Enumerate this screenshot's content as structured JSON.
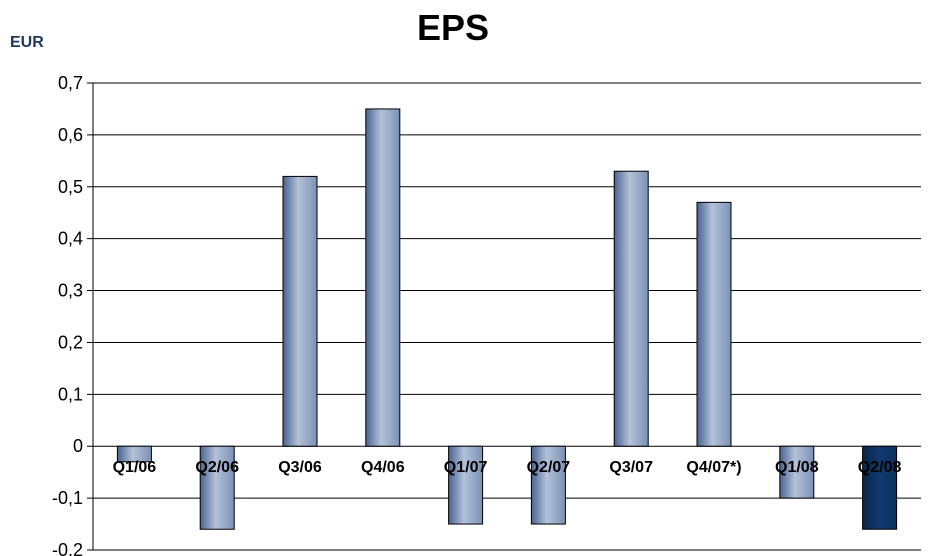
{
  "chart_data": {
    "type": "bar",
    "title": "EPS",
    "unit_label": "EUR",
    "categories": [
      "Q1/06",
      "Q2/06",
      "Q3/06",
      "Q4/06",
      "Q1/07",
      "Q2/07",
      "Q3/07",
      "Q4/07*)",
      "Q1/08",
      "Q2/08"
    ],
    "values": [
      -0.03,
      -0.16,
      0.52,
      0.65,
      -0.15,
      -0.15,
      0.53,
      0.47,
      -0.1,
      -0.16
    ],
    "ylim": [
      -0.2,
      0.7
    ],
    "yticks": [
      "-0,2",
      "-0,1",
      "0",
      "0,1",
      "0,2",
      "0,3",
      "0,4",
      "0,5",
      "0,6",
      "0,7"
    ],
    "grid": true,
    "legend": "none",
    "colors": {
      "bar": "#6f87ad",
      "highlight": "#0d2f5e"
    },
    "highlight_index": 9
  }
}
